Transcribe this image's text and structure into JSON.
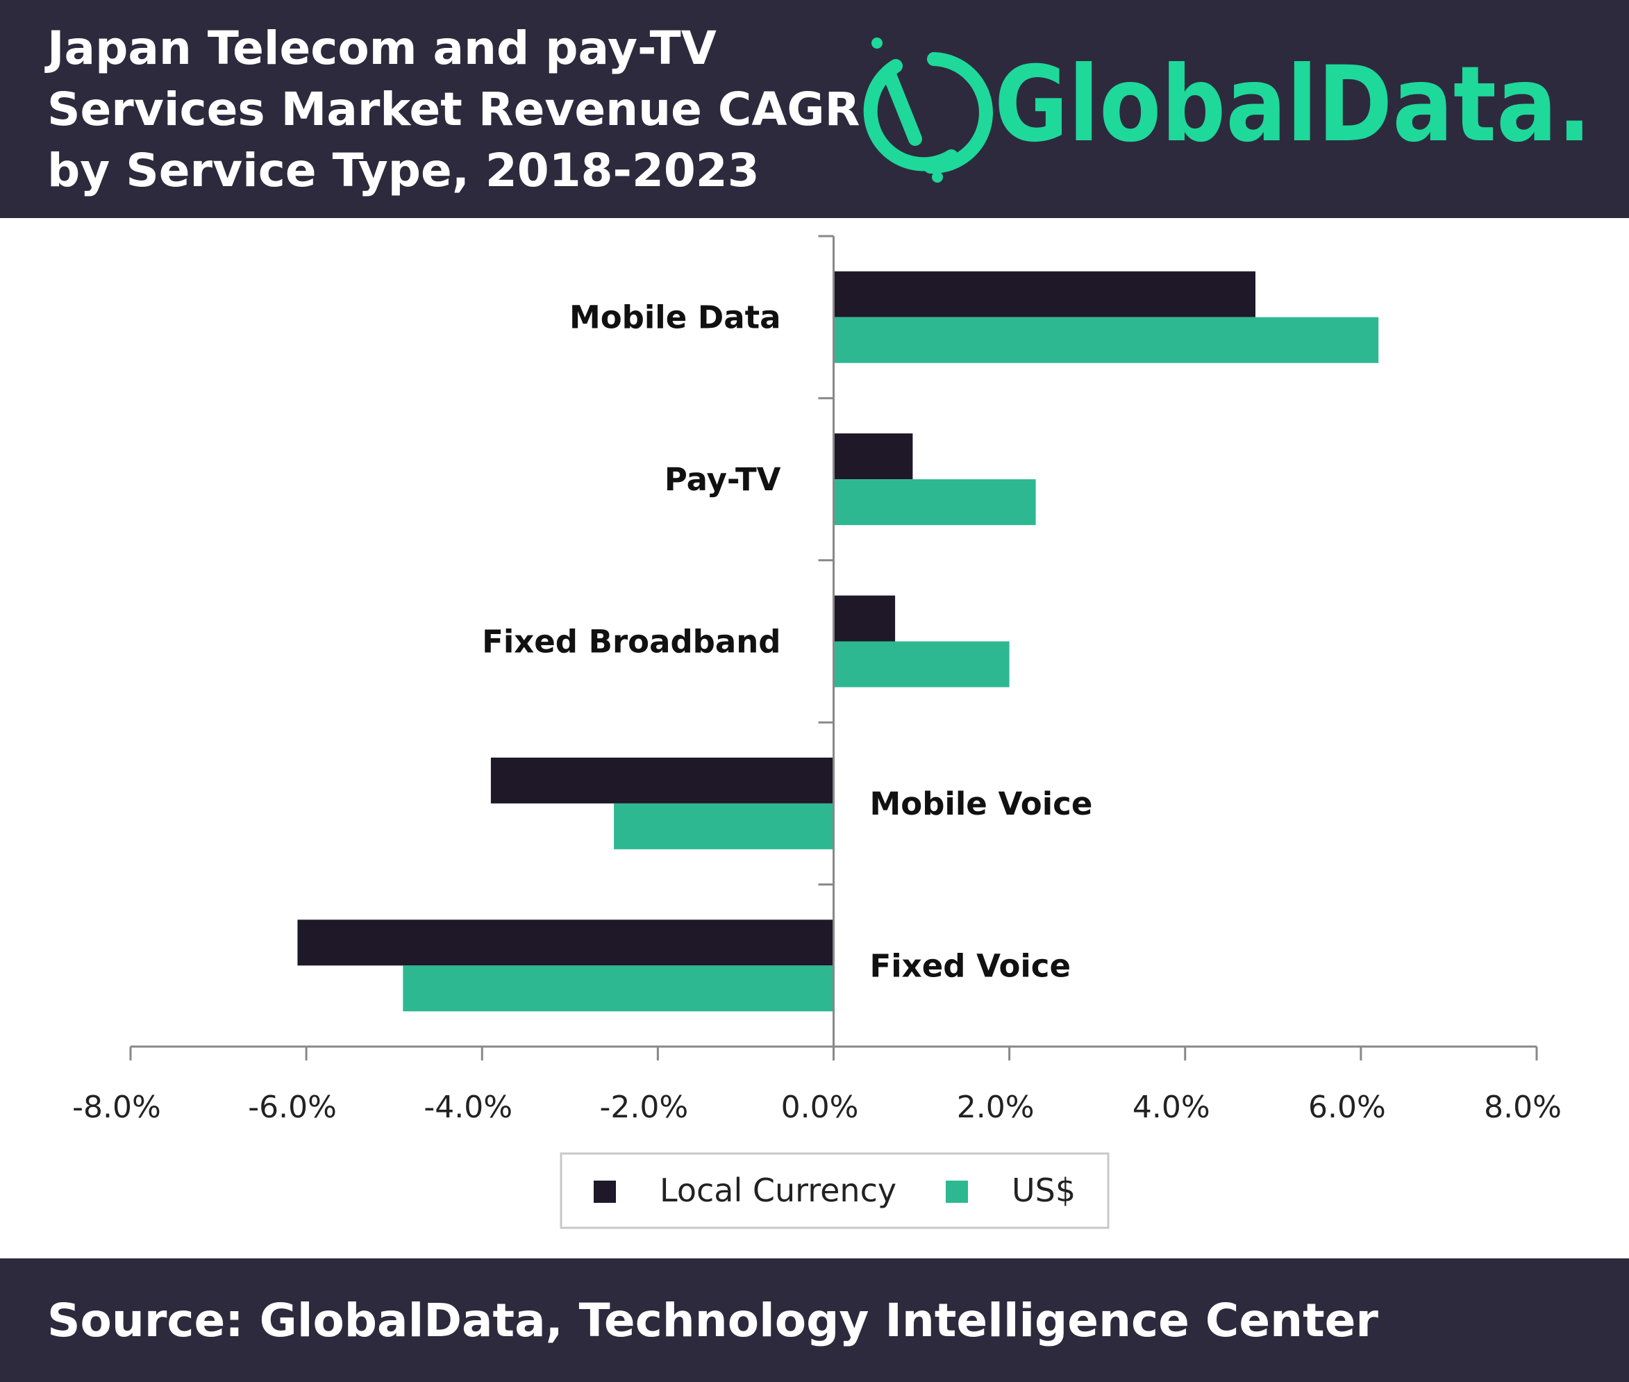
{
  "header": {
    "title_lines": [
      "Japan Telecom and pay-TV",
      "Services Market Revenue CAGR",
      "by Service Type, 2018-2023"
    ],
    "logo_text": "GlobalData."
  },
  "footer": {
    "source": "Source: GlobalData, Technology Intelligence Center"
  },
  "colors": {
    "header_bg": "#2e2a3d",
    "local_currency": "#1e1828",
    "usd": "#2db891",
    "logo": "#1ed99a"
  },
  "chart_data": {
    "type": "bar",
    "orientation": "horizontal",
    "title": "Japan Telecom and pay-TV Services Market Revenue CAGR by Service Type, 2018-2023",
    "categories": [
      "Mobile Data",
      "Pay-TV",
      "Fixed Broadband",
      "Mobile Voice",
      "Fixed Voice"
    ],
    "series": [
      {
        "name": "Local Currency",
        "values": [
          4.8,
          0.9,
          0.7,
          -3.9,
          -6.1
        ]
      },
      {
        "name": "US$",
        "values": [
          6.2,
          2.3,
          2.0,
          -2.5,
          -4.9
        ]
      }
    ],
    "xlim": [
      -8,
      8
    ],
    "xticks": [
      "-8.0%",
      "-6.0%",
      "-4.0%",
      "-2.0%",
      "0.0%",
      "2.0%",
      "4.0%",
      "6.0%",
      "8.0%"
    ],
    "unit": "%",
    "grid": false,
    "legend": "bottom"
  }
}
